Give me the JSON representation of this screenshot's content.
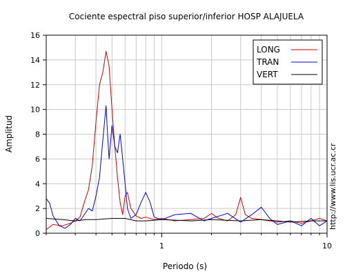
{
  "chart_data": {
    "type": "line",
    "title": "Cociente espectral piso superior/inferior  HOSP ALAJUELA",
    "xlabel": "Periodo (s)",
    "ylabel": "Amplitud",
    "xscale": "log",
    "xlim": [
      0.2,
      10
    ],
    "ylim": [
      0,
      16
    ],
    "yticks": [
      0,
      2,
      4,
      6,
      8,
      10,
      12,
      14,
      16
    ],
    "xtick_labels": [
      {
        "value": 1,
        "label": "1"
      },
      {
        "value": 10,
        "label": "10"
      }
    ],
    "grid": true,
    "legend_position": "top-right",
    "series": [
      {
        "name": "LONG",
        "color": "#cc0000",
        "points": [
          [
            0.2,
            0.3
          ],
          [
            0.22,
            0.7
          ],
          [
            0.25,
            0.6
          ],
          [
            0.28,
            0.8
          ],
          [
            0.3,
            1.0
          ],
          [
            0.32,
            1.3
          ],
          [
            0.34,
            2.5
          ],
          [
            0.36,
            3.5
          ],
          [
            0.38,
            5.5
          ],
          [
            0.4,
            9.0
          ],
          [
            0.42,
            12.0
          ],
          [
            0.44,
            13.0
          ],
          [
            0.46,
            14.7
          ],
          [
            0.48,
            13.5
          ],
          [
            0.5,
            10.0
          ],
          [
            0.52,
            7.0
          ],
          [
            0.54,
            4.5
          ],
          [
            0.56,
            2.5
          ],
          [
            0.58,
            1.5
          ],
          [
            0.6,
            3.0
          ],
          [
            0.62,
            3.3
          ],
          [
            0.65,
            2.0
          ],
          [
            0.7,
            1.4
          ],
          [
            0.75,
            1.2
          ],
          [
            0.8,
            1.3
          ],
          [
            0.9,
            1.1
          ],
          [
            1.0,
            1.2
          ],
          [
            1.2,
            1.0
          ],
          [
            1.5,
            1.1
          ],
          [
            1.8,
            1.2
          ],
          [
            2.0,
            1.6
          ],
          [
            2.2,
            1.2
          ],
          [
            2.5,
            1.0
          ],
          [
            2.8,
            1.5
          ],
          [
            3.0,
            2.9
          ],
          [
            3.2,
            1.5
          ],
          [
            3.5,
            1.2
          ],
          [
            4.0,
            1.1
          ],
          [
            5.0,
            0.9
          ],
          [
            6.0,
            1.0
          ],
          [
            7.0,
            0.8
          ],
          [
            8.0,
            1.0
          ],
          [
            9.0,
            1.2
          ],
          [
            10.0,
            1.0
          ]
        ]
      },
      {
        "name": "TRAN",
        "color": "#0000cc",
        "points": [
          [
            0.2,
            2.8
          ],
          [
            0.21,
            2.4
          ],
          [
            0.22,
            1.4
          ],
          [
            0.24,
            0.6
          ],
          [
            0.26,
            0.4
          ],
          [
            0.28,
            0.7
          ],
          [
            0.3,
            1.2
          ],
          [
            0.32,
            1.0
          ],
          [
            0.34,
            1.5
          ],
          [
            0.36,
            2.0
          ],
          [
            0.38,
            1.8
          ],
          [
            0.4,
            3.0
          ],
          [
            0.42,
            4.5
          ],
          [
            0.44,
            7.5
          ],
          [
            0.46,
            10.3
          ],
          [
            0.47,
            8.0
          ],
          [
            0.48,
            6.0
          ],
          [
            0.5,
            8.7
          ],
          [
            0.52,
            7.0
          ],
          [
            0.54,
            6.5
          ],
          [
            0.56,
            8.0
          ],
          [
            0.58,
            6.0
          ],
          [
            0.6,
            4.0
          ],
          [
            0.62,
            2.0
          ],
          [
            0.65,
            1.2
          ],
          [
            0.7,
            1.5
          ],
          [
            0.75,
            2.5
          ],
          [
            0.8,
            3.3
          ],
          [
            0.85,
            2.5
          ],
          [
            0.9,
            1.3
          ],
          [
            1.0,
            1.1
          ],
          [
            1.2,
            1.5
          ],
          [
            1.5,
            1.6
          ],
          [
            1.8,
            1.0
          ],
          [
            2.0,
            1.2
          ],
          [
            2.5,
            1.6
          ],
          [
            3.0,
            0.9
          ],
          [
            3.5,
            1.5
          ],
          [
            4.0,
            2.1
          ],
          [
            4.5,
            1.2
          ],
          [
            5.0,
            0.7
          ],
          [
            6.0,
            1.0
          ],
          [
            7.0,
            0.6
          ],
          [
            8.0,
            1.2
          ],
          [
            9.0,
            0.6
          ],
          [
            10.0,
            1.0
          ]
        ]
      },
      {
        "name": "VERT",
        "color": "#000000",
        "points": [
          [
            0.2,
            1.2
          ],
          [
            0.25,
            1.1
          ],
          [
            0.3,
            1.0
          ],
          [
            0.35,
            1.1
          ],
          [
            0.4,
            1.1
          ],
          [
            0.5,
            1.2
          ],
          [
            0.6,
            1.2
          ],
          [
            0.7,
            1.0
          ],
          [
            0.8,
            1.0
          ],
          [
            1.0,
            1.1
          ],
          [
            1.5,
            1.0
          ],
          [
            2.0,
            1.1
          ],
          [
            3.0,
            1.0
          ],
          [
            4.0,
            1.1
          ],
          [
            5.0,
            1.0
          ],
          [
            6.0,
            0.9
          ],
          [
            8.0,
            1.0
          ],
          [
            10.0,
            1.0
          ]
        ]
      }
    ]
  },
  "side_url": "http://www.lis.ucr.ac.cr"
}
